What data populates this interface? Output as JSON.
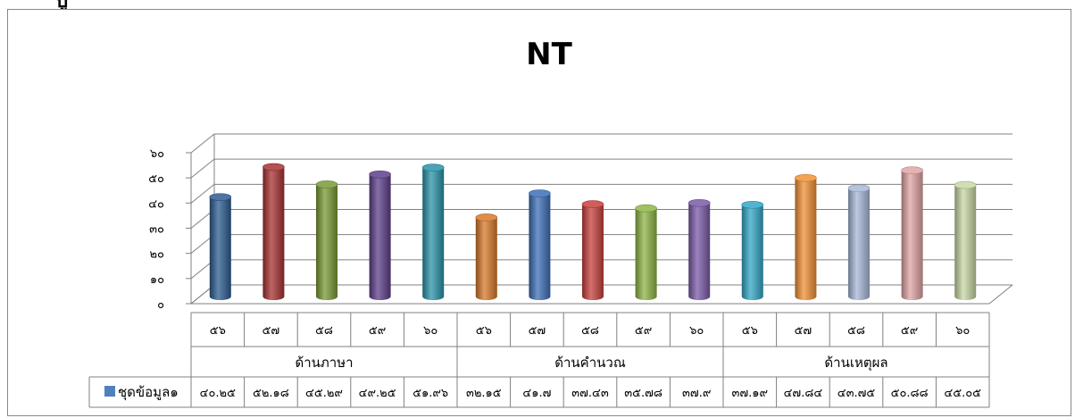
{
  "header": {
    "corner_glyph": "ปู"
  },
  "colors": {
    "gridline": "#808080",
    "table_border": "#808080",
    "legend_swatch": "#4f81bd"
  },
  "chart_data": {
    "type": "bar",
    "title": "NT",
    "ylim": [
      0,
      60
    ],
    "yticks": [
      0,
      10,
      20,
      30,
      40,
      50,
      60
    ],
    "ytick_labels": [
      "๐",
      "๑๐",
      "๒๐",
      "๓๐",
      "๔๐",
      "๕๐",
      "๖๐"
    ],
    "grid": true,
    "legend": "data-table",
    "categories": [
      "๕๖",
      "๕๗",
      "๕๘",
      "๕๙",
      "๖๐",
      "๕๖",
      "๕๗",
      "๕๘",
      "๕๙",
      "๖๐",
      "๕๖",
      "๕๗",
      "๕๘",
      "๕๙",
      "๖๐"
    ],
    "groups": [
      {
        "label": "ด้านภาษา",
        "count": 5
      },
      {
        "label": "ด้านคำนวณ",
        "count": 5
      },
      {
        "label": "ด้านเหตุผล",
        "count": 5
      }
    ],
    "series": [
      {
        "name": "ชุดข้อมูล๑",
        "values": [
          40.25,
          52.18,
          45.29,
          49.25,
          51.96,
          32.15,
          41.7,
          37.43,
          35.78,
          37.9,
          37.19,
          47.84,
          43.75,
          50.88,
          45.05
        ],
        "value_labels": [
          "๔๐.๒๕",
          "๕๒.๑๘",
          "๔๕.๒๙",
          "๔๙.๒๕",
          "๕๑.๙๖",
          "๓๒.๑๕",
          "๔๑.๗",
          "๓๗.๔๓",
          "๓๕.๗๘",
          "๓๗.๙",
          "๓๗.๑๙",
          "๔๗.๘๔",
          "๔๓.๗๕",
          "๕๐.๘๘",
          "๔๕.๐๕"
        ]
      }
    ],
    "bar_colors": [
      "#2e5c92",
      "#a83232",
      "#7a9a36",
      "#5e3f8a",
      "#2a93aa",
      "#d8792a",
      "#3d6fb8",
      "#c8403c",
      "#8fb646",
      "#7b5aa8",
      "#33a7c6",
      "#f29235",
      "#a7b8d8",
      "#e0a4a4",
      "#c8d8a4"
    ]
  }
}
